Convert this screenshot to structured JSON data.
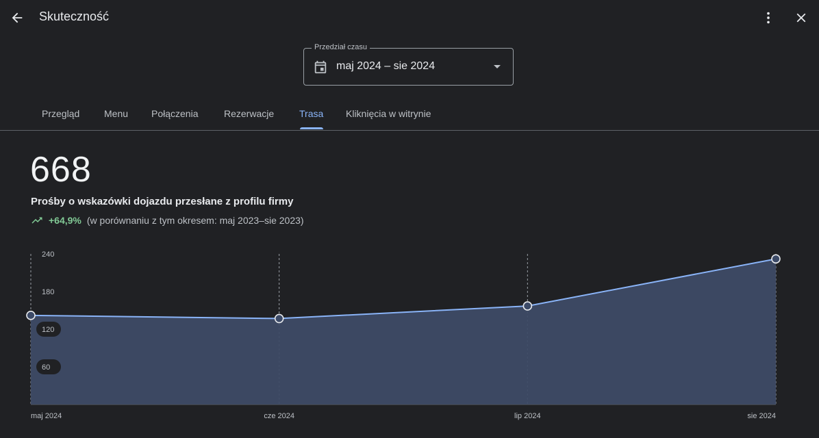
{
  "header": {
    "title": "Skuteczność"
  },
  "date_range": {
    "label": "Przedział czasu",
    "value": "maj 2024 – sie 2024"
  },
  "tabs": [
    {
      "label": "Przegląd"
    },
    {
      "label": "Menu"
    },
    {
      "label": "Połączenia"
    },
    {
      "label": "Rezerwacje"
    },
    {
      "label": "Trasa",
      "active": true
    },
    {
      "label": "Kliknięcia w witrynie"
    }
  ],
  "metric": {
    "value": "668",
    "title": "Prośby o wskazówki dojazdu przesłane z profilu firmy",
    "change": "+64,9%",
    "comparison": "(w porównaniu z tym okresem: maj 2023–sie 2023)"
  },
  "colors": {
    "background": "#202124",
    "accent": "#8ab4f8",
    "positive": "#81c995",
    "area": "#3e4b66"
  },
  "chart_data": {
    "type": "area",
    "categories": [
      "maj 2024",
      "cze 2024",
      "lip 2024",
      "sie 2024"
    ],
    "values": [
      142,
      137,
      157,
      232
    ],
    "y_ticks": [
      60,
      120,
      180,
      240
    ],
    "ylim": [
      0,
      240
    ]
  }
}
